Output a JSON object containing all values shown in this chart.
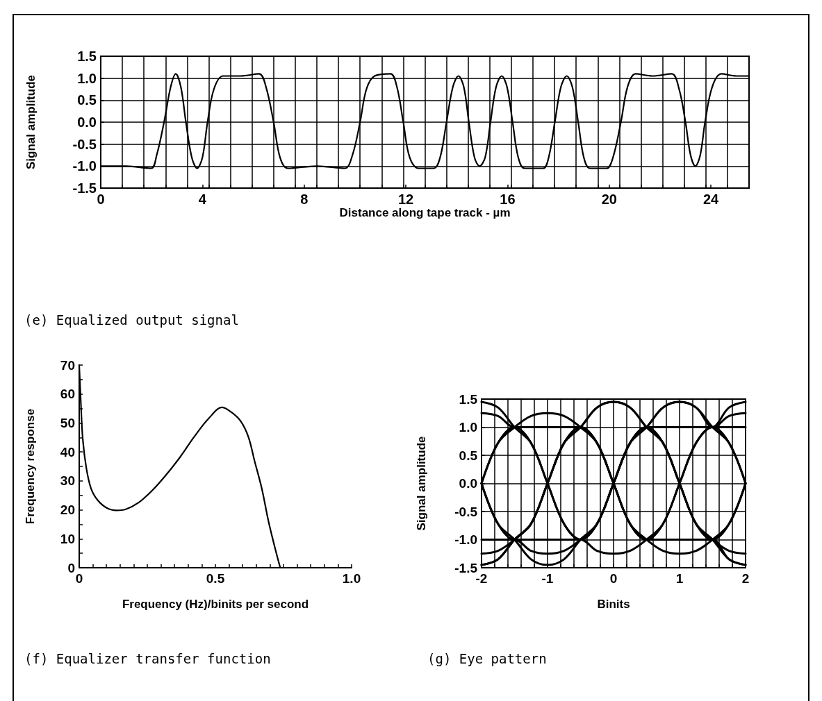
{
  "chart_data": [
    {
      "type": "line",
      "xlabel": "Distance along tape track - µm",
      "ylabel": "Signal amplitude",
      "annotations": [
        "(e) Equalized output signal"
      ],
      "xlim": [
        0,
        25.5
      ],
      "ylim": [
        -1.5,
        1.5
      ],
      "xticks": [
        0,
        4,
        8,
        12,
        16,
        20,
        24,
        {
          "value": 0.85,
          "label": null
        },
        {
          "value": 1.7,
          "label": null
        },
        {
          "value": 2.55,
          "label": null
        },
        {
          "value": 3.4,
          "label": null
        },
        {
          "value": 4.25,
          "label": null
        },
        {
          "value": 5.1,
          "label": null
        },
        {
          "value": 5.95,
          "label": null
        },
        {
          "value": 6.8,
          "label": null
        },
        {
          "value": 7.65,
          "label": null
        },
        {
          "value": 8.5,
          "label": null
        },
        {
          "value": 9.35,
          "label": null
        },
        {
          "value": 10.2,
          "label": null
        },
        {
          "value": 11.05,
          "label": null
        },
        {
          "value": 11.9,
          "label": null
        },
        {
          "value": 12.75,
          "label": null
        },
        {
          "value": 13.6,
          "label": null
        },
        {
          "value": 14.45,
          "label": null
        },
        {
          "value": 15.3,
          "label": null
        },
        {
          "value": 16.15,
          "label": null
        },
        {
          "value": 17,
          "label": null
        },
        {
          "value": 17.85,
          "label": null
        },
        {
          "value": 18.7,
          "label": null
        },
        {
          "value": 19.55,
          "label": null
        },
        {
          "value": 20.4,
          "label": null
        },
        {
          "value": 21.25,
          "label": null
        },
        {
          "value": 22.1,
          "label": null
        },
        {
          "value": 22.95,
          "label": null
        },
        {
          "value": 23.8,
          "label": null
        },
        {
          "value": 24.65,
          "label": null
        }
      ],
      "yticks": [
        -1.5,
        {
          "value": -1,
          "label": "-1.0"
        },
        -0.5,
        {
          "value": 0,
          "label": "0.0"
        },
        0.5,
        {
          "value": 1,
          "label": "1.0"
        },
        1.5
      ],
      "grid": true,
      "marker": "none",
      "line_style": "solid",
      "series": [
        {
          "color": "#000000",
          "x": [
            0,
            1.0,
            1.98,
            2.2,
            2.49,
            2.75,
            2.95,
            3.15,
            3.35,
            3.58,
            3.79,
            4.0,
            4.2,
            4.45,
            4.81,
            5.5,
            6.23,
            6.5,
            6.8,
            7.05,
            7.35,
            8.5,
            9.6,
            9.9,
            10.2,
            10.45,
            10.77,
            11.4,
            11.65,
            11.9,
            12.15,
            12.5,
            13.1,
            13.35,
            13.6,
            13.85,
            14.07,
            14.28,
            14.48,
            14.7,
            14.9,
            15.12,
            15.33,
            15.55,
            15.77,
            15.98,
            16.2,
            16.42,
            16.67,
            17.4,
            17.62,
            17.86,
            18.1,
            18.33,
            18.55,
            18.78,
            19.0,
            19.24,
            19.9,
            20.15,
            20.46,
            20.72,
            21.04,
            21.7,
            22.46,
            22.75,
            23.0,
            23.2,
            23.39,
            23.58,
            23.77,
            24.05,
            24.41,
            25.0,
            25.5
          ],
          "values": [
            -1,
            -1.0,
            -1.05,
            -0.75,
            0,
            0.8,
            1.1,
            0.8,
            0,
            -0.8,
            -1.05,
            -0.8,
            0,
            0.75,
            1.05,
            1.05,
            1.1,
            0.8,
            0,
            -0.8,
            -1.05,
            -1.0,
            -1.05,
            -0.75,
            0,
            0.75,
            1.05,
            1.1,
            0.8,
            0,
            -0.8,
            -1.05,
            -1.05,
            -0.8,
            0,
            0.8,
            1.05,
            0.8,
            0,
            -0.8,
            -1.0,
            -0.8,
            0,
            0.8,
            1.05,
            0.8,
            0,
            -0.8,
            -1.05,
            -1.05,
            -0.8,
            0,
            0.8,
            1.05,
            0.8,
            0,
            -0.8,
            -1.05,
            -1.05,
            -0.8,
            0,
            0.8,
            1.1,
            1.05,
            1.1,
            0.75,
            0,
            -0.75,
            -1.0,
            -0.75,
            0,
            0.8,
            1.1,
            1.05,
            1.05
          ]
        }
      ]
    },
    {
      "type": "line",
      "xlabel": "Frequency (Hz)/binits per second",
      "ylabel": "Frequency response",
      "annotations": [
        "(f) Equalizer transfer function"
      ],
      "xlim": [
        0,
        1
      ],
      "ylim": [
        0,
        70
      ],
      "xticks": [
        0,
        0.5,
        {
          "value": 1,
          "label": "1.0"
        },
        {
          "value": 0.05,
          "label": null
        },
        {
          "value": 0.1,
          "label": null
        },
        {
          "value": 0.15,
          "label": null
        },
        {
          "value": 0.2,
          "label": null
        },
        {
          "value": 0.25,
          "label": null
        },
        {
          "value": 0.3,
          "label": null
        },
        {
          "value": 0.35,
          "label": null
        },
        {
          "value": 0.4,
          "label": null
        },
        {
          "value": 0.45,
          "label": null
        },
        {
          "value": 0.55,
          "label": null
        },
        {
          "value": 0.6,
          "label": null
        },
        {
          "value": 0.65,
          "label": null
        },
        {
          "value": 0.7,
          "label": null
        },
        {
          "value": 0.75,
          "label": null
        },
        {
          "value": 0.8,
          "label": null
        },
        {
          "value": 0.85,
          "label": null
        },
        {
          "value": 0.9,
          "label": null
        },
        {
          "value": 0.95,
          "label": null
        }
      ],
      "yticks": [
        0,
        10,
        20,
        30,
        40,
        50,
        60,
        70,
        {
          "value": 5,
          "label": null
        },
        {
          "value": 15,
          "label": null
        },
        {
          "value": 25,
          "label": null
        },
        {
          "value": 35,
          "label": null
        },
        {
          "value": 45,
          "label": null
        },
        {
          "value": 55,
          "label": null
        },
        {
          "value": 65,
          "label": null
        }
      ],
      "grid": false,
      "marker": "none",
      "line_style": "solid",
      "series": [
        {
          "color": "#000000",
          "x": [
            0,
            0.006,
            0.013,
            0.026,
            0.043,
            0.068,
            0.102,
            0.137,
            0.171,
            0.218,
            0.269,
            0.32,
            0.371,
            0.422,
            0.474,
            0.525,
            0.559,
            0.593,
            0.621,
            0.644,
            0.67,
            0.695,
            0.717,
            0.738
          ],
          "values": [
            70,
            57,
            44.5,
            34.5,
            27.5,
            23.3,
            20.6,
            19.8,
            20.2,
            22.5,
            26.8,
            32.2,
            38.3,
            45.2,
            51.4,
            55.4,
            53.7,
            50.6,
            45.2,
            36.8,
            27.5,
            16,
            7.5,
            0
          ]
        }
      ]
    },
    {
      "type": "line",
      "xlabel": "Binits",
      "ylabel": "Signal amplitude",
      "annotations": [
        "(g) Eye pattern"
      ],
      "xlim": [
        -2,
        2
      ],
      "ylim": [
        -1.5,
        1.5
      ],
      "xticks": [
        -2,
        -1,
        0,
        1,
        2,
        {
          "value": -1.8,
          "label": null
        },
        {
          "value": -1.6,
          "label": null
        },
        {
          "value": -1.4,
          "label": null
        },
        {
          "value": -1.2,
          "label": null
        },
        {
          "value": -0.8,
          "label": null
        },
        {
          "value": -0.6,
          "label": null
        },
        {
          "value": -0.4,
          "label": null
        },
        {
          "value": -0.2,
          "label": null
        },
        {
          "value": 0.2,
          "label": null
        },
        {
          "value": 0.4,
          "label": null
        },
        {
          "value": 0.6,
          "label": null
        },
        {
          "value": 0.8,
          "label": null
        },
        {
          "value": 1.2,
          "label": null
        },
        {
          "value": 1.4,
          "label": null
        },
        {
          "value": 1.6,
          "label": null
        },
        {
          "value": 1.8,
          "label": null
        }
      ],
      "yticks": [
        -1.5,
        {
          "value": -1,
          "label": "-1.0"
        },
        -0.5,
        {
          "value": 0,
          "label": "0.0"
        },
        0.5,
        {
          "value": 1,
          "label": "1.0"
        },
        1.5
      ],
      "grid": true,
      "marker": "none",
      "line_style": "solid",
      "x": [
        -2,
        -1.75,
        -1.5,
        -1.25,
        -1,
        -0.75,
        -0.5,
        -0.25,
        0,
        0.25,
        0.5,
        0.75,
        1,
        1.25,
        1.5,
        1.75,
        2
      ],
      "series": [
        {
          "color": "#000000",
          "values": [
            1.45,
            1.35,
            1,
            0.72,
            0,
            -0.72,
            -1,
            -0.72,
            0,
            0.72,
            1,
            0.72,
            0,
            -0.72,
            -1,
            -0.72,
            0
          ]
        },
        {
          "color": "#000000",
          "values": [
            0,
            0.72,
            1,
            0.72,
            0,
            -0.72,
            -1,
            -0.72,
            0,
            0.72,
            1,
            1.35,
            1.45,
            1.35,
            1,
            0.72,
            0
          ]
        },
        {
          "color": "#000000",
          "values": [
            -1.45,
            -1.35,
            -1,
            -0.72,
            0,
            0.72,
            1,
            1.35,
            1.45,
            1.35,
            1,
            0.72,
            0,
            -0.72,
            -1,
            -1.35,
            -1.45
          ]
        },
        {
          "color": "#000000",
          "values": [
            0,
            -0.72,
            -1,
            -1.35,
            -1.45,
            -1.35,
            -1,
            -0.72,
            0,
            0.72,
            1,
            1.35,
            1.45,
            1.35,
            1,
            1.35,
            1.45
          ]
        },
        {
          "color": "#000000",
          "values": [
            1.25,
            1.2,
            1,
            1,
            1,
            1,
            1,
            0.72,
            0,
            -0.72,
            -1,
            -1.2,
            -1.25,
            -1.2,
            -1,
            -0.72,
            0
          ]
        },
        {
          "color": "#000000",
          "values": [
            -1,
            -1,
            -1,
            -1.2,
            -1.25,
            -1.2,
            -1,
            -0.72,
            0,
            0.72,
            1,
            1,
            1,
            1,
            1,
            1.2,
            1.25
          ]
        },
        {
          "color": "#000000",
          "values": [
            0,
            0.72,
            1,
            1.2,
            1.25,
            1.2,
            1,
            0.72,
            0,
            -0.72,
            -1,
            -1,
            -1,
            -1,
            -1,
            -1.35,
            -1.45
          ]
        },
        {
          "color": "#000000",
          "values": [
            0,
            -0.72,
            -1,
            -1,
            -1,
            -1,
            -1,
            -1.2,
            -1.25,
            -1.2,
            -1,
            -0.72,
            0,
            0.72,
            1,
            1,
            1
          ]
        },
        {
          "color": "#000000",
          "values": [
            -1.45,
            -1.35,
            -1,
            -0.72,
            0,
            0.72,
            1,
            0.72,
            0,
            -0.72,
            -1,
            -0.72,
            0,
            0.72,
            1,
            0.72,
            0
          ]
        },
        {
          "color": "#000000",
          "values": [
            -1.25,
            -1.2,
            -1,
            -0.72,
            0,
            0.72,
            1,
            1.35,
            1.45,
            1.35,
            1,
            0.72,
            0,
            -0.72,
            -1,
            -1.2,
            -1.25
          ]
        }
      ]
    }
  ]
}
